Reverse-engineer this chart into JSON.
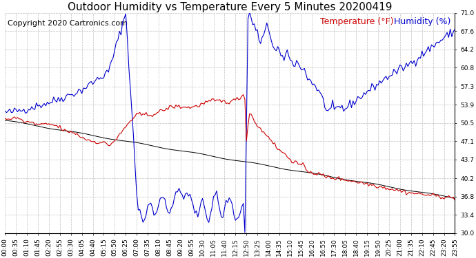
{
  "title": "Outdoor Humidity vs Temperature Every 5 Minutes 20200419",
  "copyright_text": "Copyright 2020 Cartronics.com",
  "legend_temp": "Temperature (°F)",
  "legend_hum": "Humidity (%)",
  "yticks_right": [
    30.0,
    33.4,
    36.8,
    40.2,
    43.7,
    47.1,
    50.5,
    53.9,
    57.3,
    60.8,
    64.2,
    67.6,
    71.0
  ],
  "ylim": [
    30.0,
    71.0
  ],
  "bg_color": "#ffffff",
  "grid_color": "#c0c0c0",
  "temp_color": "#cc0000",
  "hum_color": "#0000cc",
  "black_color": "#000000",
  "title_fontsize": 11,
  "tick_fontsize": 6.5,
  "legend_fontsize": 9,
  "copyright_fontsize": 8
}
